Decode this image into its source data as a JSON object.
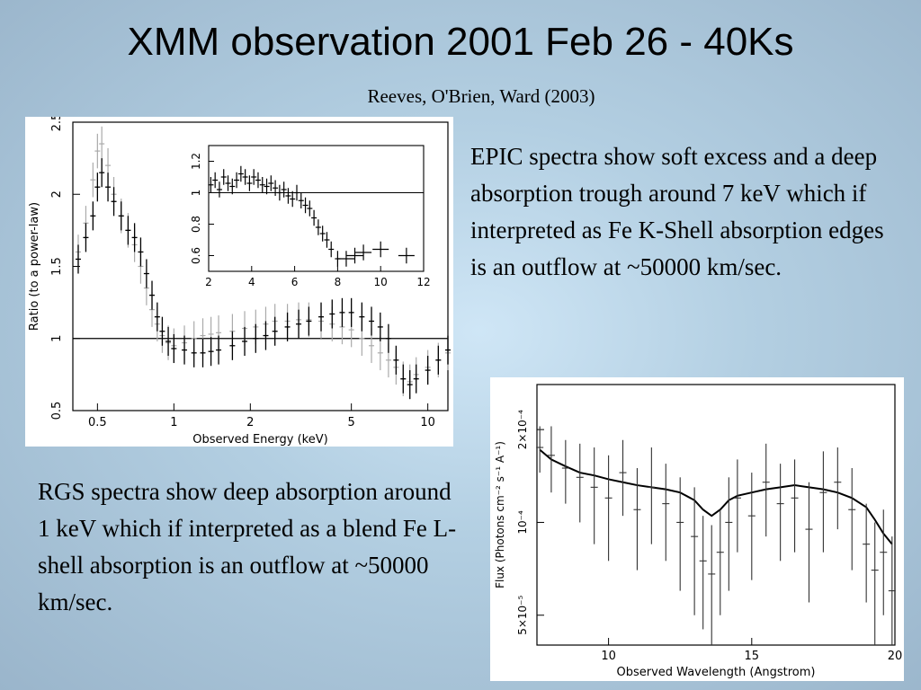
{
  "slide": {
    "title": "XMM observation 2001 Feb 26 - 40Ks",
    "subtitle": "Reeves, O'Brien, Ward (2003)",
    "epic_text": "EPIC spectra show soft excess and a deep absorption trough around 7 keV which if interpreted as Fe K-Shell absorption edges is an outflow at ~50000 km/sec.",
    "rgs_text": "RGS spectra show deep absorption around 1 keV which if interpreted as a blend Fe L-shell absorption is an outflow at ~50000 km/sec."
  },
  "chart_data": [
    {
      "type": "scatter",
      "id": "epic-main",
      "xlabel": "Observed Energy (keV)",
      "ylabel": "Ratio (to a power-law)",
      "xscale": "log",
      "xlim": [
        0.4,
        12
      ],
      "ylim": [
        0.5,
        2.5
      ],
      "xticklabels": [
        "0.5",
        "1",
        "2",
        "5",
        "10"
      ],
      "xtickvalues": [
        0.5,
        1,
        2,
        5,
        10
      ],
      "yticklabels": [
        "0.5",
        "1",
        "1.5",
        "2",
        "2.5"
      ],
      "ytickvalues": [
        0.5,
        1,
        1.5,
        2,
        2.5
      ],
      "reference_line": 1,
      "x": [
        0.42,
        0.45,
        0.48,
        0.5,
        0.52,
        0.55,
        0.58,
        0.62,
        0.66,
        0.7,
        0.74,
        0.78,
        0.82,
        0.86,
        0.9,
        0.95,
        1.0,
        1.1,
        1.2,
        1.3,
        1.4,
        1.5,
        1.7,
        1.9,
        2.1,
        2.3,
        2.5,
        2.8,
        3.1,
        3.4,
        3.8,
        4.2,
        4.6,
        5.0,
        5.5,
        6.0,
        6.5,
        7.0,
        7.5,
        8.0,
        8.5,
        9.0,
        10.0,
        11.0,
        12.0
      ],
      "y": [
        1.55,
        1.7,
        1.85,
        2.05,
        2.15,
        2.05,
        1.95,
        1.85,
        1.75,
        1.7,
        1.6,
        1.45,
        1.3,
        1.15,
        1.05,
        0.98,
        0.93,
        0.92,
        0.9,
        0.9,
        0.91,
        0.92,
        0.95,
        0.98,
        1.0,
        1.02,
        1.05,
        1.08,
        1.1,
        1.12,
        1.15,
        1.17,
        1.18,
        1.18,
        1.15,
        1.12,
        1.08,
        1.0,
        0.85,
        0.72,
        0.68,
        0.72,
        0.78,
        0.85,
        0.92
      ],
      "series_secondary_y": [
        1.6,
        1.8,
        2.1,
        2.3,
        2.35,
        2.2,
        2.0,
        1.85,
        1.75,
        1.65,
        1.5,
        1.35,
        1.2,
        1.1,
        1.02,
        0.97,
        0.95,
        0.97,
        1.0,
        1.02,
        1.03,
        1.04,
        1.05,
        1.07,
        1.08,
        1.1,
        1.12,
        1.12,
        1.13,
        1.13,
        1.12,
        1.1,
        1.08,
        1.06,
        1.0,
        0.95,
        0.9,
        0.85,
        0.8,
        0.72,
        0.7,
        0.75,
        0.8,
        0.85,
        0.9
      ]
    },
    {
      "type": "scatter",
      "id": "epic-inset",
      "xlim": [
        2,
        12
      ],
      "ylim": [
        0.5,
        1.3
      ],
      "xticklabels": [
        "2",
        "4",
        "6",
        "8",
        "10",
        "12"
      ],
      "xtickvalues": [
        2,
        4,
        6,
        8,
        10,
        12
      ],
      "yticklabels": [
        "0.6",
        "0.8",
        "1",
        "1.2"
      ],
      "ytickvalues": [
        0.6,
        0.8,
        1.0,
        1.2
      ],
      "reference_line": 1,
      "x": [
        2.1,
        2.3,
        2.5,
        2.7,
        2.9,
        3.1,
        3.3,
        3.5,
        3.7,
        3.9,
        4.1,
        4.3,
        4.5,
        4.7,
        4.9,
        5.1,
        5.3,
        5.5,
        5.7,
        5.9,
        6.1,
        6.3,
        6.5,
        6.7,
        6.9,
        7.1,
        7.3,
        7.5,
        7.7,
        8.0,
        8.4,
        8.8,
        9.2,
        10.0,
        11.2
      ],
      "y": [
        1.05,
        1.08,
        1.02,
        1.1,
        1.06,
        1.04,
        1.08,
        1.12,
        1.1,
        1.06,
        1.1,
        1.08,
        1.05,
        1.04,
        1.06,
        1.03,
        1.0,
        1.02,
        0.98,
        0.96,
        1.0,
        0.95,
        0.92,
        0.9,
        0.84,
        0.78,
        0.74,
        0.7,
        0.64,
        0.58,
        0.58,
        0.6,
        0.62,
        0.64,
        0.6
      ]
    },
    {
      "type": "line",
      "id": "rgs",
      "xlabel": "Observed Wavelength (Angstrom)",
      "ylabel": "Flux (Photons cm⁻² s⁻¹ A⁻¹)",
      "yscale": "log",
      "xlim": [
        7.5,
        20
      ],
      "ylim": [
        4e-05,
        0.00028
      ],
      "xticklabels": [
        "10",
        "15",
        "20"
      ],
      "xtickvalues": [
        10,
        15,
        20
      ],
      "yticklabels": [
        "2×10⁻⁴",
        "10⁻⁴",
        "5×10⁻⁵"
      ],
      "ytickvalues": [
        0.0002,
        0.0001,
        5e-05
      ],
      "x": [
        7.6,
        8.0,
        8.5,
        9.0,
        9.5,
        10.0,
        10.5,
        11.0,
        11.5,
        12.0,
        12.5,
        13.0,
        13.3,
        13.6,
        13.9,
        14.2,
        14.5,
        15.0,
        15.5,
        16.0,
        16.5,
        17.0,
        17.5,
        18.0,
        18.5,
        19.0,
        19.3,
        19.6,
        19.9
      ],
      "model": [
        0.000172,
        0.00016,
        0.000152,
        0.000145,
        0.000142,
        0.000138,
        0.000135,
        0.000132,
        0.00013,
        0.000128,
        0.000125,
        0.000118,
        0.00011,
        0.000105,
        0.00011,
        0.000118,
        0.000122,
        0.000125,
        0.000128,
        0.00013,
        0.000132,
        0.00013,
        0.000128,
        0.000125,
        0.00012,
        0.000112,
        0.000102,
        9.2e-05,
        8.5e-05
      ],
      "data": [
        0.000175,
        0.000165,
        0.00015,
        0.00014,
        0.00013,
        0.00012,
        0.000145,
        0.00011,
        0.00013,
        0.000115,
        0.0001,
        9e-05,
        7.5e-05,
        6.8e-05,
        8e-05,
        0.0001,
        0.00012,
        0.000105,
        0.000135,
        0.000115,
        0.00012,
        9.5e-05,
        0.000125,
        0.000135,
        0.00011,
        8.5e-05,
        7e-05,
        8e-05,
        6e-05
      ],
      "err": [
        3e-05,
        4e-05,
        3.5e-05,
        4e-05,
        4.5e-05,
        4.5e-05,
        4e-05,
        4e-05,
        4.5e-05,
        4e-05,
        4e-05,
        4e-05,
        3e-05,
        3e-05,
        3e-05,
        4e-05,
        4e-05,
        4e-05,
        4.5e-05,
        4e-05,
        4e-05,
        4e-05,
        4.5e-05,
        4e-05,
        4e-05,
        3e-05,
        3e-05,
        3e-05,
        3e-05
      ]
    }
  ]
}
